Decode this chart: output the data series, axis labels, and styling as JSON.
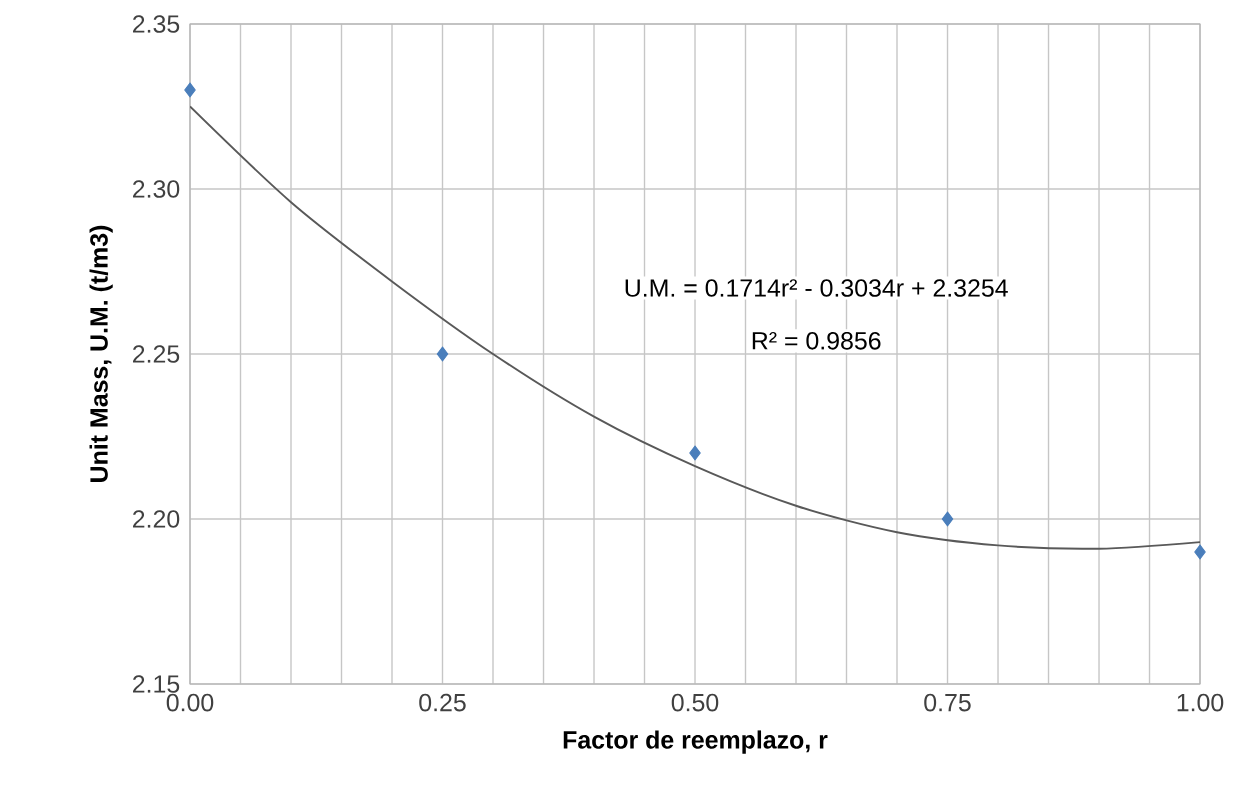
{
  "chart_data": {
    "type": "scatter",
    "xlabel": "Factor de reemplazo, r",
    "ylabel": "Unit Mass, U.M. (t/m3)",
    "series": [
      {
        "color": "#4a7ebb",
        "marker": "diamond",
        "x": [
          0,
          0.25,
          0.5,
          0.75,
          1
        ],
        "values": [
          2.33,
          2.25,
          2.22,
          2.2,
          2.19
        ]
      },
      {
        "type": "line",
        "color": "#595959",
        "x": [
          0,
          0.1,
          0.2,
          0.3,
          0.4,
          0.5,
          0.6,
          0.7,
          0.8,
          0.9,
          1.0
        ],
        "values": [
          2.325,
          2.296,
          2.272,
          2.25,
          2.231,
          2.216,
          2.204,
          2.196,
          2.192,
          2.191,
          2.193
        ]
      }
    ],
    "annotations": [
      "U.M. = 0.1714r² - 0.3034r + 2.3254",
      "R² = 0.9856"
    ],
    "xlim": [
      0,
      1
    ],
    "ylim": [
      2.15,
      2.35
    ],
    "xticks": [
      {
        "value": 0,
        "label": "0.00"
      },
      {
        "value": 0.05,
        "label": null
      },
      {
        "value": 0.1,
        "label": null
      },
      {
        "value": 0.15,
        "label": null
      },
      {
        "value": 0.2,
        "label": null
      },
      {
        "value": 0.25,
        "label": "0.25"
      },
      {
        "value": 0.3,
        "label": null
      },
      {
        "value": 0.35,
        "label": null
      },
      {
        "value": 0.4,
        "label": null
      },
      {
        "value": 0.45,
        "label": null
      },
      {
        "value": 0.5,
        "label": "0.50"
      },
      {
        "value": 0.55,
        "label": null
      },
      {
        "value": 0.6,
        "label": null
      },
      {
        "value": 0.65,
        "label": null
      },
      {
        "value": 0.7,
        "label": null
      },
      {
        "value": 0.75,
        "label": "0.75"
      },
      {
        "value": 0.8,
        "label": null
      },
      {
        "value": 0.85,
        "label": null
      },
      {
        "value": 0.9,
        "label": null
      },
      {
        "value": 0.95,
        "label": null
      },
      {
        "value": 1,
        "label": "1.00"
      }
    ],
    "yticks": [
      {
        "value": 2.15,
        "label": "2.15"
      },
      {
        "value": 2.2,
        "label": "2.20"
      },
      {
        "value": 2.25,
        "label": "2.25"
      },
      {
        "value": 2.3,
        "label": "2.30"
      },
      {
        "value": 2.35,
        "label": "2.35"
      }
    ],
    "grid": true
  }
}
